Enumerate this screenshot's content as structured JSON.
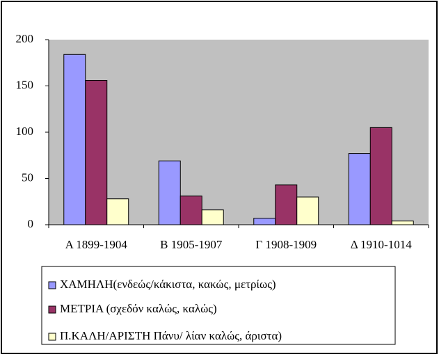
{
  "chart_data": {
    "type": "bar",
    "categories": [
      "Α 1899-1904",
      "Β 1905-1907",
      "Γ 1908-1909",
      "Δ 1910-1014"
    ],
    "series": [
      {
        "name": "ΧΑΜΗΛΗ(ενδεώς/κάκιστα, κακώς, μετρίως)",
        "color": "#9999ff",
        "values": [
          184,
          69,
          7,
          77
        ]
      },
      {
        "name": "ΜΕΤΡΙΑ (σχεδόν καλώς, καλώς)",
        "color": "#993366",
        "values": [
          156,
          31,
          43,
          105
        ]
      },
      {
        "name": "Π.ΚΑΛΗ/ΑΡΙΣΤΗ Πάνυ/ λίαν καλώς, άριστα)",
        "color": "#ffffcc",
        "values": [
          28,
          16,
          30,
          4
        ]
      }
    ],
    "ylim": [
      0,
      200
    ],
    "yticks": [
      0,
      50,
      100,
      150,
      200
    ],
    "grid": false,
    "legend": "bottom"
  }
}
